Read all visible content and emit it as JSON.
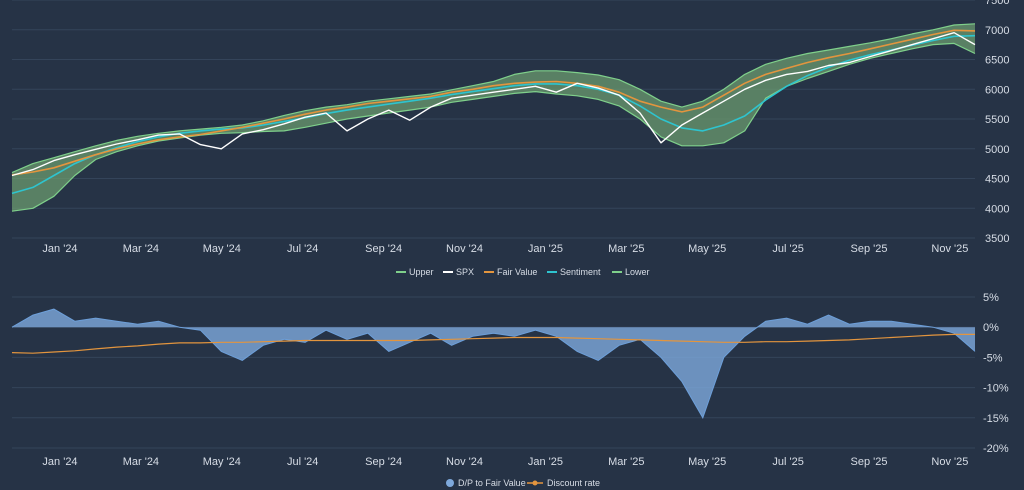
{
  "colors": {
    "background": "#263346",
    "grid": "#34445a",
    "text": "#d7dde6",
    "band_fill": "#6b9b6f",
    "band_edge": "#7fd08b",
    "spx": "#ffffff",
    "fair_value": "#e3953e",
    "sentiment": "#2ec4cf",
    "dp_fill": "#7ea9dc",
    "dp_line": "#6d9fd9",
    "discount": "#e3953e"
  },
  "chart_data": [
    {
      "type": "line",
      "x_labels": [
        "Jan '24",
        "Mar '24",
        "May '24",
        "Jul '24",
        "Sep '24",
        "Nov '24",
        "Jan '25",
        "Mar '25",
        "May '25",
        "Jul '25",
        "Sep '25",
        "Nov '25"
      ],
      "y_ticks": [
        3500,
        4000,
        4500,
        5000,
        5500,
        6000,
        6500,
        7000,
        7500
      ],
      "ylim": [
        3500,
        7500
      ],
      "grid": true,
      "legend_position": "bottom",
      "legend": [
        "Upper",
        "SPX",
        "Fair Value",
        "Sentiment",
        "Lower"
      ],
      "series": [
        {
          "name": "Fair Value",
          "values": [
            4560,
            4610,
            4680,
            4790,
            4900,
            5000,
            5080,
            5150,
            5200,
            5240,
            5300,
            5360,
            5430,
            5500,
            5580,
            5650,
            5700,
            5760,
            5800,
            5840,
            5880,
            5950,
            6000,
            6060,
            6100,
            6120,
            6130,
            6100,
            6050,
            5950,
            5800,
            5700,
            5620,
            5700,
            5900,
            6100,
            6250,
            6350,
            6450,
            6530,
            6600,
            6680,
            6760,
            6840,
            6920,
            6990,
            6980
          ]
        },
        {
          "name": "Sentiment",
          "values": [
            4250,
            4350,
            4550,
            4750,
            4900,
            5020,
            5120,
            5200,
            5260,
            5300,
            5330,
            5350,
            5400,
            5460,
            5520,
            5590,
            5650,
            5700,
            5750,
            5800,
            5850,
            5910,
            5960,
            6010,
            6060,
            6090,
            6090,
            6060,
            6000,
            5900,
            5720,
            5500,
            5350,
            5300,
            5400,
            5550,
            5820,
            6050,
            6230,
            6370,
            6490,
            6580,
            6660,
            6740,
            6820,
            6890,
            6900
          ]
        },
        {
          "name": "SPX",
          "values": [
            4550,
            4650,
            4800,
            4900,
            4990,
            5080,
            5150,
            5230,
            5250,
            5070,
            5000,
            5250,
            5320,
            5420,
            5530,
            5600,
            5300,
            5500,
            5650,
            5480,
            5700,
            5850,
            5900,
            5950,
            6000,
            6050,
            5950,
            6100,
            6020,
            5900,
            5600,
            5100,
            5400,
            5600,
            5800,
            6000,
            6150,
            6250,
            6300,
            6400,
            6450,
            6550,
            6650,
            6750,
            6850,
            6950,
            6750
          ]
        },
        {
          "name": "Upper",
          "values": [
            4600,
            4750,
            4850,
            4950,
            5050,
            5140,
            5210,
            5260,
            5300,
            5330,
            5360,
            5400,
            5470,
            5560,
            5640,
            5700,
            5740,
            5800,
            5840,
            5880,
            5920,
            5990,
            6060,
            6130,
            6250,
            6310,
            6310,
            6280,
            6240,
            6160,
            6000,
            5800,
            5700,
            5800,
            6000,
            6250,
            6420,
            6520,
            6600,
            6660,
            6720,
            6780,
            6850,
            6930,
            7000,
            7080,
            7100
          ]
        },
        {
          "name": "Lower",
          "values": [
            3950,
            4000,
            4200,
            4550,
            4820,
            4950,
            5050,
            5130,
            5180,
            5230,
            5260,
            5270,
            5290,
            5300,
            5360,
            5430,
            5500,
            5550,
            5600,
            5650,
            5700,
            5780,
            5830,
            5880,
            5930,
            5960,
            5920,
            5890,
            5830,
            5720,
            5500,
            5200,
            5050,
            5050,
            5100,
            5300,
            5850,
            6050,
            6180,
            6300,
            6420,
            6520,
            6600,
            6680,
            6750,
            6770,
            6600
          ]
        }
      ]
    },
    {
      "type": "area",
      "x_labels": [
        "Jan '24",
        "Mar '24",
        "May '24",
        "Jul '24",
        "Sep '24",
        "Nov '24",
        "Jan '25",
        "Mar '25",
        "May '25",
        "Jul '25",
        "Sep '25",
        "Nov '25"
      ],
      "y_ticks": [
        "5%",
        "0%",
        "-5%",
        "-10%",
        "-15%",
        "-20%"
      ],
      "ylim": [
        -20,
        5
      ],
      "grid": true,
      "legend_position": "bottom",
      "legend": [
        "D/P to Fair Value",
        "Discount rate"
      ],
      "series": [
        {
          "name": "D/P to Fair Value",
          "values": [
            0,
            2,
            3,
            1,
            1.5,
            1,
            0.5,
            1,
            0,
            -0.5,
            -4,
            -5.5,
            -3,
            -2,
            -2.5,
            -0.5,
            -2,
            -1,
            -4,
            -2.5,
            -1,
            -3,
            -1.5,
            -1,
            -1.5,
            -0.5,
            -1.5,
            -4,
            -5.5,
            -3,
            -2,
            -5,
            -9,
            -15,
            -5,
            -1.5,
            1,
            1.5,
            0.5,
            2,
            0.5,
            1,
            1,
            0.5,
            0,
            -1,
            -4
          ]
        },
        {
          "name": "Discount rate",
          "values": [
            -4.2,
            -4.3,
            -4.1,
            -3.9,
            -3.6,
            -3.3,
            -3.1,
            -2.8,
            -2.6,
            -2.6,
            -2.5,
            -2.5,
            -2.4,
            -2.3,
            -2.2,
            -2.2,
            -2.2,
            -2.2,
            -2.2,
            -2.2,
            -2.1,
            -2.0,
            -1.9,
            -1.8,
            -1.7,
            -1.7,
            -1.7,
            -1.8,
            -1.9,
            -2.0,
            -2.1,
            -2.2,
            -2.3,
            -2.4,
            -2.5,
            -2.5,
            -2.4,
            -2.4,
            -2.3,
            -2.2,
            -2.1,
            -1.9,
            -1.7,
            -1.5,
            -1.3,
            -1.2,
            -1.2
          ]
        }
      ]
    }
  ]
}
